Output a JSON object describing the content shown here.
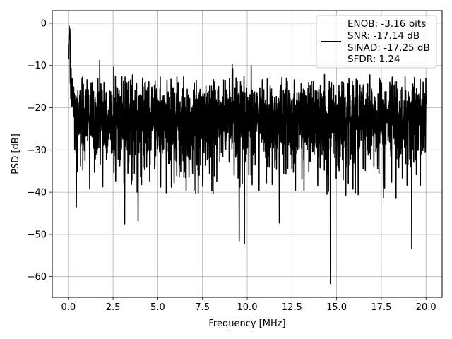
{
  "chart_data": {
    "type": "line",
    "xlabel": "Frequency [MHz]",
    "ylabel": "PSD [dB]",
    "xlim": [
      -0.9,
      20.9
    ],
    "ylim": [
      -64.9,
      3
    ],
    "xticks": [
      0.0,
      2.5,
      5.0,
      7.5,
      10.0,
      12.5,
      15.0,
      17.5,
      20.0
    ],
    "xtick_labels": [
      "0.0",
      "2.5",
      "5.0",
      "7.5",
      "10.0",
      "12.5",
      "15.0",
      "17.5",
      "20.0"
    ],
    "yticks": [
      0,
      -10,
      -20,
      -30,
      -40,
      -50,
      -60
    ],
    "ytick_labels": [
      "0",
      "−10",
      "−20",
      "−30",
      "−40",
      "−50",
      "−60"
    ],
    "grid": true,
    "legend_position": "top-right",
    "series": [
      {
        "name": "ENOB: -3.16 bits\nSNR: -17.14 dB\nSINAD: -17.25 dB\nSFDR: 1.24",
        "legend_lines": [
          "ENOB: -3.16 bits",
          "SNR: -17.14 dB",
          "SINAD: -17.25 dB",
          "SFDR: 1.24"
        ],
        "color": "#000000",
        "x_range": [
          0.0,
          20.0
        ],
        "peak": {
          "x": 0.05,
          "y": 0.0
        },
        "noise_floor_mean": -23.0,
        "noise_floor_typical_range": [
          -33,
          -14
        ],
        "extreme_dips": [
          {
            "x": 0.45,
            "y": -43.5
          },
          {
            "x": 3.15,
            "y": -47.5
          },
          {
            "x": 3.9,
            "y": -46.8
          },
          {
            "x": 9.55,
            "y": -51.5
          },
          {
            "x": 9.85,
            "y": -52.2
          },
          {
            "x": 11.8,
            "y": -47.3
          },
          {
            "x": 14.65,
            "y": -61.6
          },
          {
            "x": 19.2,
            "y": -53.3
          }
        ]
      }
    ]
  }
}
